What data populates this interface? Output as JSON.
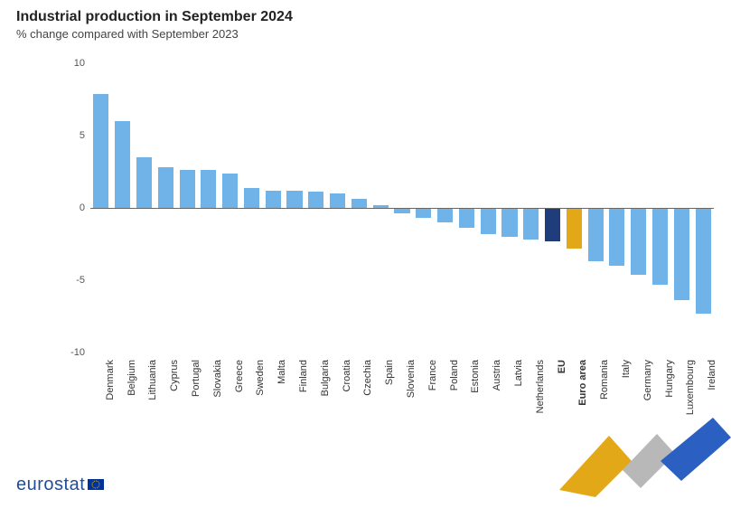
{
  "header": {
    "title": "Industrial production in September 2024",
    "subtitle": "% change compared with September 2023",
    "title_fontsize": 16,
    "subtitle_fontsize": 13,
    "title_color": "#222222",
    "subtitle_color": "#444444"
  },
  "chart": {
    "type": "bar",
    "ylim": [
      -10,
      10
    ],
    "ytick_step": 5,
    "yticks": [
      -10,
      -5,
      0,
      5,
      10
    ],
    "axis_font_size": 11,
    "axis_color": "#555555",
    "zero_line_color": "#666666",
    "bar_width_ratio": 0.72,
    "background_color": "#ffffff",
    "default_bar_color": "#6fb3e8",
    "highlight_colors": {
      "eu": "#1f3d7a",
      "euro_area": "#e3a817"
    },
    "categories": [
      "Denmark",
      "Belgium",
      "Lithuania",
      "Cyprus",
      "Portugal",
      "Slovakia",
      "Greece",
      "Sweden",
      "Malta",
      "Finland",
      "Bulgaria",
      "Croatia",
      "Czechia",
      "Spain",
      "Slovenia",
      "France",
      "Poland",
      "Estonia",
      "Austria",
      "Latvia",
      "Netherlands",
      "EU",
      "Euro area",
      "Romania",
      "Italy",
      "Germany",
      "Hungary",
      "Luxembourg",
      "Ireland"
    ],
    "values": [
      7.9,
      6.0,
      3.5,
      2.8,
      2.6,
      2.6,
      2.4,
      1.4,
      1.2,
      1.2,
      1.1,
      1.0,
      0.6,
      0.2,
      -0.4,
      -0.7,
      -1.0,
      -1.4,
      -1.8,
      -2.0,
      -2.2,
      -2.3,
      -2.8,
      -3.7,
      -4.0,
      -4.6,
      -5.3,
      -6.4,
      -7.3
    ],
    "bar_colors": [
      "#6fb3e8",
      "#6fb3e8",
      "#6fb3e8",
      "#6fb3e8",
      "#6fb3e8",
      "#6fb3e8",
      "#6fb3e8",
      "#6fb3e8",
      "#6fb3e8",
      "#6fb3e8",
      "#6fb3e8",
      "#6fb3e8",
      "#6fb3e8",
      "#6fb3e8",
      "#6fb3e8",
      "#6fb3e8",
      "#6fb3e8",
      "#6fb3e8",
      "#6fb3e8",
      "#6fb3e8",
      "#6fb3e8",
      "#1f3d7a",
      "#e3a817",
      "#6fb3e8",
      "#6fb3e8",
      "#6fb3e8",
      "#6fb3e8",
      "#6fb3e8",
      "#6fb3e8"
    ],
    "bold_labels": [
      "EU",
      "Euro area"
    ],
    "x_label_fontsize": 11,
    "x_label_color": "#333333",
    "x_label_rotation": -90
  },
  "footer": {
    "brand": "eurostat",
    "brand_color": "#1f4e96",
    "brand_fontsize": 20
  },
  "swoosh": {
    "colors": {
      "yellow": "#e3a817",
      "grey": "#b8b8b8",
      "blue": "#2b5fc1"
    }
  }
}
